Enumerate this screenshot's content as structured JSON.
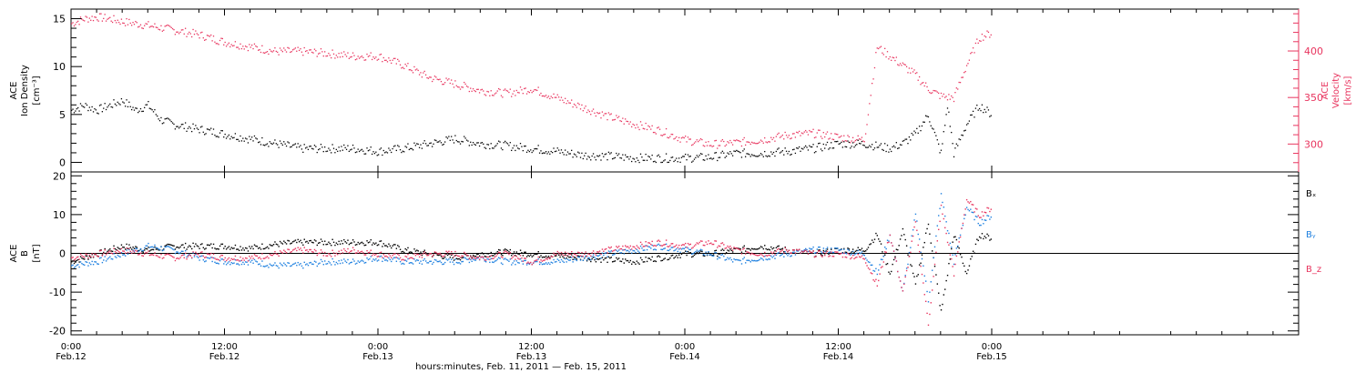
{
  "xaxis": {
    "title": "hours:minutes, Feb. 11, 2011 — Feb. 15, 2011",
    "range_hours": [
      0,
      96
    ],
    "ticks": [
      {
        "hours": 0,
        "time": "0:00",
        "date": "Feb.12"
      },
      {
        "hours": 12,
        "time": "12:00",
        "date": "Feb.12"
      },
      {
        "hours": 24,
        "time": "0:00",
        "date": "Feb.13"
      },
      {
        "hours": 36,
        "time": "12:00",
        "date": "Feb.13"
      },
      {
        "hours": 48,
        "time": "0:00",
        "date": "Feb.14"
      },
      {
        "hours": 60,
        "time": "12:00",
        "date": "Feb.14"
      },
      {
        "hours": 72,
        "time": "0:00",
        "date": "Feb.15"
      }
    ]
  },
  "chart_data": [
    {
      "type": "scatter",
      "panel": "top",
      "ylabel_left": [
        "ACE",
        "Ion Density",
        "[cm⁻³]"
      ],
      "ylabel_right": [
        "ACE",
        "Velocity",
        "[km/s]"
      ],
      "ylim_left": [
        -1,
        16
      ],
      "ylim_right": [
        270,
        445
      ],
      "yticks_left": [
        0,
        5,
        10,
        15
      ],
      "yticks_right": [
        300,
        350,
        400
      ],
      "series": [
        {
          "axis": "left",
          "color": "#000000",
          "x": [
            0,
            1,
            2,
            3,
            4,
            5,
            6,
            7,
            8,
            10,
            12,
            14,
            16,
            18,
            20,
            22,
            24,
            26,
            28,
            30,
            32,
            34,
            36,
            38,
            40,
            42,
            44,
            46,
            48,
            50,
            52,
            54,
            56,
            58,
            60,
            62,
            64,
            65,
            66,
            67,
            68,
            68.5,
            69,
            70,
            71,
            72
          ],
          "y": [
            5.5,
            6,
            5.5,
            6,
            6.5,
            5.5,
            6,
            4.5,
            4,
            3.5,
            3,
            2.5,
            2,
            1.5,
            1.5,
            1.5,
            1.2,
            1.5,
            2,
            2.5,
            2,
            1.8,
            1.5,
            1.2,
            0.8,
            0.7,
            0.5,
            0.5,
            0.5,
            0.6,
            1,
            1,
            1.2,
            1.5,
            2,
            2,
            1.5,
            2,
            3,
            5,
            1,
            6,
            1,
            4,
            6,
            5
          ]
        },
        {
          "axis": "right",
          "color": "#e8345e",
          "x": [
            0,
            1,
            2,
            3,
            4,
            6,
            8,
            10,
            12,
            14,
            16,
            18,
            20,
            22,
            24,
            26,
            28,
            30,
            32,
            34,
            36,
            38,
            40,
            42,
            44,
            46,
            48,
            50,
            52,
            54,
            56,
            58,
            60,
            62,
            63,
            64,
            65,
            66,
            67,
            68,
            69,
            70,
            71,
            72
          ],
          "y": [
            430,
            435,
            437,
            435,
            432,
            428,
            423,
            418,
            410,
            405,
            400,
            400,
            398,
            395,
            395,
            385,
            372,
            365,
            358,
            355,
            360,
            350,
            340,
            330,
            322,
            315,
            305,
            300,
            302,
            305,
            310,
            312,
            308,
            305,
            405,
            395,
            385,
            375,
            360,
            352,
            350,
            385,
            415,
            420
          ]
        }
      ]
    },
    {
      "type": "line",
      "panel": "bottom",
      "ylabel": [
        "ACE",
        "B",
        "[nT]"
      ],
      "ylim": [
        -21,
        21
      ],
      "yticks": [
        -20,
        -10,
        0,
        10,
        20
      ],
      "legend": [
        "Bₓ",
        "Bᵧ",
        "B_z"
      ],
      "series": [
        {
          "name": "Bₓ",
          "color": "#000000",
          "x": [
            0,
            2,
            4,
            6,
            8,
            10,
            12,
            14,
            16,
            18,
            20,
            22,
            24,
            26,
            28,
            30,
            32,
            34,
            36,
            38,
            40,
            42,
            44,
            46,
            48,
            50,
            52,
            54,
            56,
            58,
            60,
            62,
            63,
            64,
            65,
            66,
            67,
            68,
            69,
            70,
            71,
            72
          ],
          "y": [
            -2,
            0,
            2,
            1,
            2,
            2,
            2,
            1.5,
            2.5,
            3,
            3,
            3,
            3,
            1,
            0,
            -1,
            0,
            0.5,
            0,
            -0.5,
            -1,
            -1.5,
            -2,
            -1,
            0,
            0,
            1,
            2,
            1,
            0,
            1,
            1,
            5,
            -5,
            6,
            -8,
            8,
            -15,
            5,
            -5,
            5,
            4
          ]
        },
        {
          "name": "Bᵧ",
          "color": "#1e80e0",
          "x": [
            0,
            2,
            4,
            6,
            8,
            10,
            12,
            14,
            16,
            18,
            20,
            22,
            24,
            26,
            28,
            30,
            32,
            34,
            36,
            38,
            40,
            42,
            44,
            46,
            48,
            50,
            52,
            54,
            56,
            58,
            60,
            62,
            63,
            64,
            65,
            66,
            67,
            68,
            69,
            70,
            71,
            72
          ],
          "y": [
            -3,
            -2,
            0,
            2,
            1,
            -1,
            -2,
            -2,
            -3,
            -3,
            -2,
            -2,
            -1,
            -2,
            -2,
            -2,
            -1,
            -2,
            -2,
            -2,
            -1,
            0,
            1,
            2,
            1,
            0,
            -2,
            -1,
            0,
            1,
            1,
            0,
            -5,
            5,
            -10,
            10,
            -12,
            15,
            -2,
            12,
            8,
            10
          ]
        },
        {
          "name": "B_z",
          "color": "#e8345e",
          "x": [
            0,
            2,
            4,
            6,
            8,
            10,
            12,
            14,
            16,
            18,
            20,
            22,
            24,
            26,
            28,
            30,
            32,
            34,
            36,
            38,
            40,
            42,
            44,
            46,
            48,
            50,
            52,
            54,
            56,
            58,
            60,
            62,
            63,
            64,
            65,
            66,
            67,
            68,
            69,
            70,
            71,
            72
          ],
          "y": [
            -1,
            0,
            1,
            0,
            -1,
            0,
            -1,
            -1,
            0,
            1,
            0,
            1,
            0,
            -1,
            0,
            0,
            -1,
            0,
            -2,
            0,
            0,
            1,
            2,
            3,
            2,
            3,
            1,
            0,
            1,
            0,
            0,
            -1,
            -8,
            5,
            -10,
            8,
            -18,
            12,
            -5,
            14,
            10,
            12
          ]
        }
      ]
    }
  ]
}
